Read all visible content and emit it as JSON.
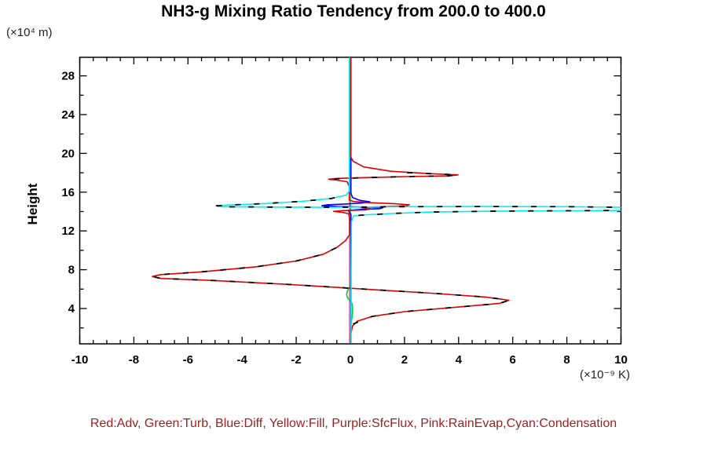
{
  "page": {
    "background": "#ffffff"
  },
  "chart_data": {
    "type": "line",
    "title": "NH3-g Mixing Ratio Tendency from 200.0 to 400.0",
    "y_unit_label": "(×10⁴ m)",
    "x_unit_label": "(×10⁻⁹ K)",
    "y_axis_title": "Height",
    "legend_caption": "Red:Adv, Green:Turb, Blue:Diff, Yellow:Fill, Purple:SfcFlux, Pink:RainEvap,Cyan:Condensation",
    "legend_color": "#992222",
    "axes": {
      "x_min": -10,
      "x_max": 10,
      "x_major_ticks": [
        -10,
        -8,
        -6,
        -4,
        -2,
        0,
        2,
        4,
        6,
        8,
        10
      ],
      "x_minor_step": 0.5,
      "y_min": 0.35,
      "y_max": 29.9,
      "y_major_ticks": [
        4,
        8,
        12,
        16,
        20,
        24,
        28
      ],
      "y_minor_step": 2,
      "grid": false
    },
    "series": [
      {
        "name": "Fill",
        "color": "#eecc00",
        "points": [
          [
            -0.03,
            29.9
          ],
          [
            -0.03,
            0.4
          ]
        ]
      },
      {
        "name": "RainEvap",
        "color": "#ff66b3",
        "points": [
          [
            -0.03,
            29.9
          ],
          [
            -0.03,
            0.4
          ]
        ]
      },
      {
        "name": "SfcFlux",
        "color": "#aa22cc",
        "points": [
          [
            -0.01,
            14.18
          ],
          [
            -0.01,
            13.86
          ]
        ]
      },
      {
        "name": "Turb",
        "color": "#00cc44",
        "points": [
          [
            0.0,
            29.9
          ],
          [
            0.0,
            6.5
          ],
          [
            -0.04,
            6.15
          ],
          [
            -0.11,
            5.8
          ],
          [
            -0.14,
            5.45
          ],
          [
            -0.11,
            5.15
          ],
          [
            -0.04,
            4.9
          ],
          [
            0.05,
            4.6
          ],
          [
            0.08,
            4.2
          ],
          [
            0.08,
            3.5
          ],
          [
            0.05,
            2.9
          ],
          [
            0.02,
            2.3
          ],
          [
            0.01,
            0.4
          ]
        ]
      },
      {
        "name": "Diff",
        "color": "#0000ee",
        "points": [
          [
            0.02,
            29.9
          ],
          [
            0.02,
            15.9
          ],
          [
            0.08,
            15.45
          ],
          [
            0.35,
            15.15
          ],
          [
            0.72,
            15.0
          ],
          [
            0.45,
            14.88
          ],
          [
            -0.2,
            14.78
          ],
          [
            -0.85,
            14.7
          ],
          [
            -1.05,
            14.6
          ],
          [
            -0.5,
            14.52
          ],
          [
            0.6,
            14.46
          ],
          [
            1.2,
            14.4
          ],
          [
            1.1,
            14.3
          ],
          [
            0.4,
            14.22
          ],
          [
            -0.08,
            14.12
          ],
          [
            -0.04,
            13.95
          ],
          [
            0.02,
            13.7
          ],
          [
            0.02,
            0.4
          ]
        ]
      },
      {
        "name": "Adv",
        "color": "#dd0000",
        "points": [
          [
            0.02,
            29.9
          ],
          [
            0.02,
            19.6
          ],
          [
            0.1,
            19.2
          ],
          [
            0.5,
            18.6
          ],
          [
            1.5,
            18.15
          ],
          [
            3.0,
            17.9
          ],
          [
            3.98,
            17.78
          ],
          [
            3.6,
            17.68
          ],
          [
            2.0,
            17.6
          ],
          [
            0.5,
            17.5
          ],
          [
            -0.5,
            17.42
          ],
          [
            -0.8,
            17.34
          ],
          [
            -0.5,
            17.24
          ],
          [
            -0.12,
            17.08
          ],
          [
            -0.04,
            16.6
          ],
          [
            -0.04,
            15.2
          ],
          [
            0.1,
            15.05
          ],
          [
            0.6,
            14.92
          ],
          [
            1.6,
            14.82
          ],
          [
            2.18,
            14.7
          ],
          [
            2.05,
            14.58
          ],
          [
            1.1,
            14.5
          ],
          [
            0.35,
            14.42
          ],
          [
            0.75,
            14.28
          ],
          [
            0.55,
            14.16
          ],
          [
            -0.3,
            14.1
          ],
          [
            -0.62,
            14.02
          ],
          [
            -0.3,
            13.92
          ],
          [
            -0.06,
            13.78
          ],
          [
            -0.03,
            13.2
          ],
          [
            -0.03,
            11.6
          ],
          [
            -0.18,
            11.0
          ],
          [
            -0.5,
            10.3
          ],
          [
            -1.0,
            9.6
          ],
          [
            -2.0,
            8.9
          ],
          [
            -3.5,
            8.3
          ],
          [
            -5.5,
            7.78
          ],
          [
            -7.0,
            7.5
          ],
          [
            -7.32,
            7.3
          ],
          [
            -7.0,
            7.1
          ],
          [
            -5.0,
            6.88
          ],
          [
            -2.5,
            6.52
          ],
          [
            -0.5,
            6.18
          ],
          [
            0.8,
            5.95
          ],
          [
            3.0,
            5.58
          ],
          [
            5.0,
            5.18
          ],
          [
            5.86,
            4.85
          ],
          [
            5.5,
            4.52
          ],
          [
            4.0,
            4.15
          ],
          [
            2.0,
            3.68
          ],
          [
            0.8,
            3.18
          ],
          [
            0.25,
            2.68
          ],
          [
            0.08,
            2.2
          ],
          [
            0.02,
            1.4
          ],
          [
            0.02,
            0.4
          ]
        ]
      },
      {
        "name": "Condensation",
        "color": "#00eeee",
        "points": [
          [
            -0.04,
            29.9
          ],
          [
            -0.04,
            16.1
          ],
          [
            -0.15,
            15.7
          ],
          [
            -0.7,
            15.35
          ],
          [
            -1.8,
            15.05
          ],
          [
            -3.2,
            14.82
          ],
          [
            -4.4,
            14.68
          ],
          [
            -4.95,
            14.6
          ],
          [
            -4.9,
            14.5
          ],
          [
            -3.0,
            14.46
          ],
          [
            -1.0,
            14.44
          ],
          [
            0.5,
            14.46
          ],
          [
            2.0,
            14.5
          ],
          [
            5.0,
            14.52
          ],
          [
            8.0,
            14.5
          ],
          [
            10.6,
            14.42
          ],
          [
            10.9,
            14.3
          ],
          [
            10.6,
            14.12
          ],
          [
            8.0,
            14.08
          ],
          [
            5.5,
            14.05
          ],
          [
            3.0,
            13.95
          ],
          [
            1.5,
            13.8
          ],
          [
            0.5,
            13.65
          ],
          [
            0.12,
            13.55
          ],
          [
            0.04,
            13.0
          ],
          [
            0.03,
            8.0
          ],
          [
            0.03,
            0.4
          ]
        ]
      },
      {
        "name": "Total-lower",
        "color": "#000000",
        "dash": "7 17",
        "width": 1.8,
        "points": [
          [
            0.1,
            2.4
          ],
          [
            0.8,
            3.18
          ],
          [
            2.0,
            3.68
          ],
          [
            4.0,
            4.15
          ],
          [
            5.5,
            4.52
          ],
          [
            5.87,
            4.85
          ],
          [
            5.0,
            5.18
          ],
          [
            3.0,
            5.58
          ],
          [
            0.8,
            5.95
          ],
          [
            -0.5,
            6.18
          ],
          [
            -2.5,
            6.52
          ],
          [
            -5.0,
            6.88
          ],
          [
            -7.0,
            7.1
          ],
          [
            -7.3,
            7.3
          ],
          [
            -7.0,
            7.5
          ],
          [
            -5.5,
            7.78
          ],
          [
            -3.5,
            8.3
          ],
          [
            -2.0,
            8.9
          ],
          [
            -1.0,
            9.6
          ],
          [
            -0.5,
            10.3
          ],
          [
            -0.2,
            11.0
          ]
        ]
      },
      {
        "name": "Total-mid",
        "color": "#000000",
        "dash": "7 17",
        "width": 1.8,
        "points": [
          [
            0.3,
            13.6
          ],
          [
            1.5,
            13.8
          ],
          [
            3.0,
            13.95
          ],
          [
            5.5,
            14.05
          ],
          [
            8.0,
            14.08
          ],
          [
            10.6,
            14.12
          ],
          [
            10.9,
            14.3
          ],
          [
            10.6,
            14.42
          ],
          [
            8.0,
            14.5
          ],
          [
            5.0,
            14.52
          ],
          [
            2.0,
            14.5
          ],
          [
            0.5,
            14.46
          ],
          [
            -1.0,
            14.44
          ],
          [
            -3.0,
            14.46
          ],
          [
            -4.9,
            14.5
          ],
          [
            -4.95,
            14.6
          ],
          [
            -4.4,
            14.68
          ],
          [
            -3.2,
            14.82
          ],
          [
            -1.8,
            15.05
          ],
          [
            -0.7,
            15.35
          ],
          [
            -0.15,
            15.7
          ]
        ]
      },
      {
        "name": "Total-upper",
        "color": "#000000",
        "dash": "7 17",
        "width": 1.8,
        "points": [
          [
            -0.6,
            17.36
          ],
          [
            0.5,
            17.5
          ],
          [
            2.0,
            17.6
          ],
          [
            3.6,
            17.68
          ],
          [
            3.98,
            17.78
          ],
          [
            3.2,
            17.88
          ],
          [
            1.8,
            18.05
          ]
        ]
      }
    ]
  }
}
